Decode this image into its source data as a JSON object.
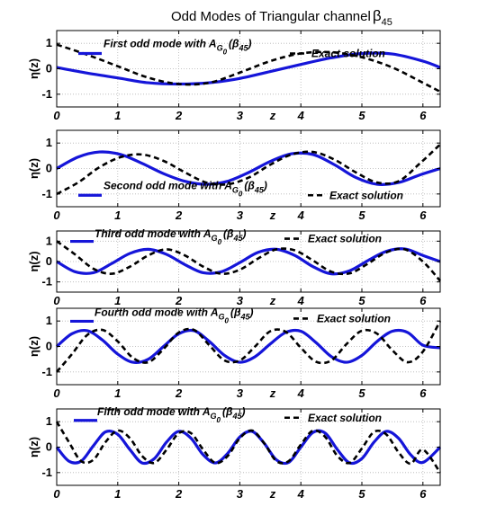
{
  "figure": {
    "title": "Odd Modes of Triangular channel",
    "title_symbol": "β",
    "title_subscript": "45"
  },
  "colors": {
    "approx": "#1515d9",
    "exact": "#000000",
    "grid": "#b4b4b4"
  },
  "chart_data": [
    {
      "type": "line",
      "mode": 1,
      "xlabel": "z",
      "ylabel": "η(z)",
      "xlim": [
        0,
        6.283
      ],
      "ylim": [
        -1.5,
        1.5
      ],
      "xticks": [
        0,
        1,
        2,
        3,
        4,
        5,
        6
      ],
      "yticks": [
        -1,
        0,
        1
      ],
      "grid": true,
      "legend": [
        {
          "text": "First odd mode with A",
          "sub": "G",
          "subsub": "0",
          "arg": "(β",
          "argsub": "45",
          "close": ")"
        },
        {
          "text": "Exact solution"
        }
      ],
      "series": [
        {
          "name": "First odd mode with A_G0(β45)",
          "style": "solid",
          "color": "#1515d9",
          "x": [
            0,
            0.5,
            1.0,
            1.5,
            2.0,
            2.5,
            3.0,
            3.5,
            4.0,
            4.5,
            5.0,
            5.5,
            6.0,
            6.283
          ],
          "y": [
            0.05,
            -0.17,
            -0.36,
            -0.55,
            -0.6,
            -0.55,
            -0.38,
            -0.11,
            0.17,
            0.43,
            0.6,
            0.58,
            0.3,
            0.05
          ]
        },
        {
          "name": "Exact solution",
          "style": "dashed",
          "color": "#000000",
          "x": [
            0,
            0.5,
            1.0,
            1.5,
            2.0,
            2.5,
            3.0,
            3.5,
            4.0,
            4.5,
            5.0,
            5.5,
            6.0,
            6.283
          ],
          "y": [
            0.95,
            0.55,
            0.1,
            -0.35,
            -0.6,
            -0.55,
            -0.15,
            0.3,
            0.6,
            0.65,
            0.45,
            0.05,
            -0.55,
            -0.9
          ]
        }
      ]
    },
    {
      "type": "line",
      "mode": 2,
      "xlabel": "z",
      "ylabel": "η(z)",
      "xlim": [
        0,
        6.283
      ],
      "ylim": [
        -1.5,
        1.5
      ],
      "xticks": [
        0,
        1,
        2,
        3,
        4,
        5,
        6
      ],
      "yticks": [
        -1,
        0,
        1
      ],
      "grid": true,
      "legend": [
        {
          "text": "Second odd mode with A",
          "sub": "G",
          "subsub": "0",
          "arg": "(β",
          "argsub": "45",
          "close": ")"
        },
        {
          "text": "Exact solution"
        }
      ],
      "series": [
        {
          "name": "Second odd mode with A_G0(β45)",
          "style": "solid",
          "color": "#1515d9",
          "x": [
            0,
            0.35,
            0.7,
            1.05,
            1.4,
            1.75,
            2.1,
            2.45,
            2.8,
            3.15,
            3.5,
            3.85,
            4.2,
            4.55,
            4.9,
            5.25,
            5.6,
            5.95,
            6.283
          ],
          "y": [
            0.0,
            0.45,
            0.65,
            0.55,
            0.2,
            -0.2,
            -0.5,
            -0.62,
            -0.5,
            -0.15,
            0.28,
            0.58,
            0.55,
            0.15,
            -0.35,
            -0.62,
            -0.55,
            -0.25,
            0.0
          ]
        },
        {
          "name": "Exact solution",
          "style": "dashed",
          "color": "#000000",
          "x": [
            0,
            0.35,
            0.7,
            1.05,
            1.4,
            1.75,
            2.1,
            2.45,
            2.8,
            3.15,
            3.5,
            3.85,
            4.2,
            4.55,
            4.9,
            5.25,
            5.6,
            5.95,
            6.283
          ],
          "y": [
            -1.0,
            -0.55,
            0.05,
            0.45,
            0.55,
            0.3,
            -0.15,
            -0.55,
            -0.62,
            -0.35,
            0.15,
            0.55,
            0.65,
            0.35,
            -0.15,
            -0.55,
            -0.5,
            0.2,
            0.95
          ]
        }
      ]
    },
    {
      "type": "line",
      "mode": 3,
      "xlabel": "z",
      "ylabel": "η(z)",
      "xlim": [
        0,
        6.283
      ],
      "ylim": [
        -1.5,
        1.5
      ],
      "xticks": [
        0,
        1,
        2,
        3,
        4,
        5,
        6
      ],
      "yticks": [
        -1,
        0,
        1
      ],
      "grid": true,
      "legend": [
        {
          "text": "Third odd mode with A",
          "sub": "G",
          "subsub": "0",
          "arg": "(β",
          "argsub": "45",
          "close": ")"
        },
        {
          "text": "Exact solution"
        }
      ],
      "series": [
        {
          "name": "Third odd mode with A_G0(β45)",
          "style": "solid",
          "color": "#1515d9",
          "x": [
            0,
            0.3,
            0.6,
            0.9,
            1.2,
            1.5,
            1.8,
            2.1,
            2.4,
            2.7,
            3.0,
            3.3,
            3.6,
            3.9,
            4.2,
            4.5,
            4.8,
            5.1,
            5.4,
            5.7,
            6.0,
            6.283
          ],
          "y": [
            0.0,
            -0.5,
            -0.55,
            -0.1,
            0.4,
            0.6,
            0.35,
            -0.15,
            -0.55,
            -0.5,
            -0.05,
            0.45,
            0.6,
            0.3,
            -0.25,
            -0.6,
            -0.45,
            0.05,
            0.5,
            0.62,
            0.3,
            0.0
          ]
        },
        {
          "name": "Exact solution",
          "style": "dashed",
          "color": "#000000",
          "x": [
            0,
            0.3,
            0.6,
            0.9,
            1.2,
            1.5,
            1.8,
            2.1,
            2.4,
            2.7,
            3.0,
            3.3,
            3.6,
            3.9,
            4.2,
            4.5,
            4.8,
            5.1,
            5.4,
            5.7,
            6.0,
            6.283
          ],
          "y": [
            1.0,
            0.35,
            -0.35,
            -0.6,
            -0.25,
            0.3,
            0.6,
            0.3,
            -0.25,
            -0.6,
            -0.4,
            0.15,
            0.6,
            0.55,
            0.05,
            -0.5,
            -0.58,
            -0.1,
            0.45,
            0.6,
            0.0,
            -0.95
          ]
        }
      ]
    },
    {
      "type": "line",
      "mode": 4,
      "xlabel": "z",
      "ylabel": "η(z)",
      "xlim": [
        0,
        6.283
      ],
      "ylim": [
        -1.5,
        1.5
      ],
      "xticks": [
        0,
        1,
        2,
        3,
        4,
        5,
        6
      ],
      "yticks": [
        -1,
        0,
        1
      ],
      "grid": true,
      "legend": [
        {
          "text": "Fourth odd mode with A",
          "sub": "G",
          "subsub": "0",
          "arg": "(β",
          "argsub": "45",
          "close": ")"
        },
        {
          "text": "Exact solution"
        }
      ],
      "series": [
        {
          "name": "Fourth odd mode with A_G0(β45)",
          "style": "solid",
          "color": "#1515d9",
          "x": [
            0,
            0.25,
            0.5,
            0.75,
            1.0,
            1.25,
            1.5,
            1.75,
            2.0,
            2.25,
            2.5,
            2.75,
            3.0,
            3.25,
            3.5,
            3.75,
            4.0,
            4.25,
            4.5,
            4.75,
            5.0,
            5.25,
            5.5,
            5.75,
            6.0,
            6.283
          ],
          "y": [
            0.0,
            0.5,
            0.62,
            0.25,
            -0.3,
            -0.62,
            -0.5,
            0.0,
            0.5,
            0.62,
            0.2,
            -0.35,
            -0.62,
            -0.4,
            0.1,
            0.55,
            0.6,
            0.15,
            -0.4,
            -0.62,
            -0.35,
            0.2,
            0.6,
            0.55,
            0.05,
            -0.05
          ]
        },
        {
          "name": "Exact solution",
          "style": "dashed",
          "color": "#000000",
          "x": [
            0,
            0.25,
            0.5,
            0.75,
            1.0,
            1.25,
            1.5,
            1.75,
            2.0,
            2.25,
            2.5,
            2.75,
            3.0,
            3.25,
            3.5,
            3.75,
            4.0,
            4.25,
            4.5,
            4.75,
            5.0,
            5.25,
            5.5,
            5.75,
            6.0,
            6.283
          ],
          "y": [
            -1.0,
            -0.3,
            0.45,
            0.65,
            0.2,
            -0.45,
            -0.62,
            -0.1,
            0.55,
            0.65,
            0.05,
            -0.55,
            -0.55,
            0.0,
            0.6,
            0.58,
            -0.05,
            -0.6,
            -0.55,
            0.1,
            0.62,
            0.5,
            -0.15,
            -0.62,
            -0.2,
            1.0
          ]
        }
      ]
    },
    {
      "type": "line",
      "mode": 5,
      "xlabel": "z",
      "ylabel": "η(z)",
      "xlim": [
        0,
        6.283
      ],
      "ylim": [
        -1.5,
        1.5
      ],
      "xticks": [
        0,
        1,
        2,
        3,
        4,
        5,
        6
      ],
      "yticks": [
        -1,
        0,
        1
      ],
      "grid": true,
      "legend": [
        {
          "text": "Fifth odd mode with A",
          "sub": "G",
          "subsub": "0",
          "arg": "(β",
          "argsub": "45",
          "close": ")"
        },
        {
          "text": "Exact solution"
        }
      ],
      "series": [
        {
          "name": "Fifth odd mode with A_G0(β45)",
          "style": "solid",
          "color": "#1515d9",
          "x": [
            0,
            0.2,
            0.4,
            0.6,
            0.8,
            1.0,
            1.2,
            1.4,
            1.6,
            1.8,
            2.0,
            2.2,
            2.4,
            2.6,
            2.8,
            3.0,
            3.2,
            3.4,
            3.6,
            3.8,
            4.0,
            4.2,
            4.4,
            4.6,
            4.8,
            5.0,
            5.2,
            5.4,
            5.6,
            5.8,
            6.0,
            6.283
          ],
          "y": [
            0.0,
            -0.55,
            -0.55,
            0.05,
            0.6,
            0.5,
            -0.1,
            -0.62,
            -0.45,
            0.2,
            0.62,
            0.35,
            -0.3,
            -0.62,
            -0.25,
            0.4,
            0.62,
            0.15,
            -0.5,
            -0.6,
            0.0,
            0.58,
            0.55,
            -0.1,
            -0.62,
            -0.45,
            0.2,
            0.62,
            0.35,
            -0.3,
            -0.6,
            0.0
          ]
        },
        {
          "name": "Exact solution",
          "style": "dashed",
          "color": "#000000",
          "x": [
            0,
            0.2,
            0.4,
            0.6,
            0.8,
            1.0,
            1.2,
            1.4,
            1.6,
            1.8,
            2.0,
            2.2,
            2.4,
            2.6,
            2.8,
            3.0,
            3.2,
            3.4,
            3.6,
            3.8,
            4.0,
            4.2,
            4.4,
            4.6,
            4.8,
            5.0,
            5.2,
            5.4,
            5.6,
            5.8,
            6.0,
            6.283
          ],
          "y": [
            1.0,
            0.2,
            -0.55,
            -0.5,
            0.2,
            0.65,
            0.35,
            -0.35,
            -0.62,
            -0.1,
            0.55,
            0.55,
            -0.1,
            -0.62,
            -0.35,
            0.35,
            0.65,
            0.15,
            -0.55,
            -0.55,
            0.1,
            0.65,
            0.4,
            -0.35,
            -0.62,
            -0.05,
            0.6,
            0.5,
            -0.2,
            -0.65,
            -0.1,
            -1.0
          ]
        }
      ]
    }
  ]
}
